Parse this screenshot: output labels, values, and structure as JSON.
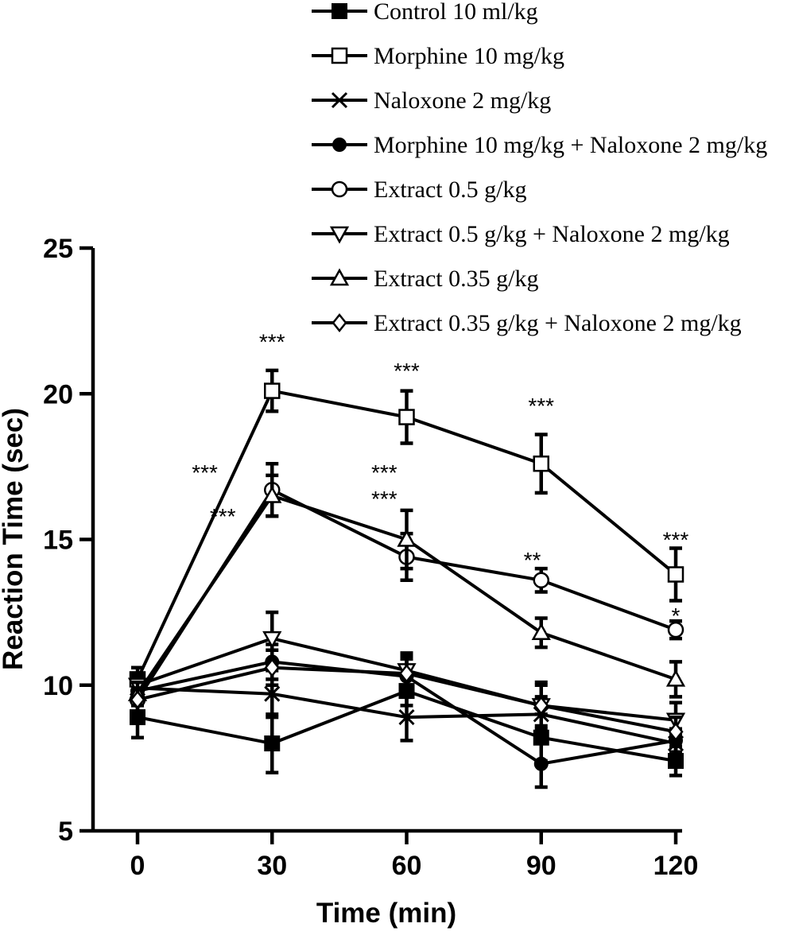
{
  "chart_data": {
    "type": "line",
    "title": "",
    "xlabel": "Time (min)",
    "ylabel": "Reaction Time (sec)",
    "x": [
      0,
      30,
      60,
      90,
      120
    ],
    "xticks": [
      "0",
      "30",
      "60",
      "90",
      "120"
    ],
    "yticks": [
      "5",
      "10",
      "15",
      "20",
      "25"
    ],
    "xlim": [
      0,
      120
    ],
    "ylim": [
      5,
      25
    ],
    "grid": false,
    "legend_position": "top-right",
    "series": [
      {
        "name": "Control 10 ml/kg",
        "marker": "filled-square",
        "values": [
          8.9,
          8.0,
          9.8,
          8.2,
          7.4
        ],
        "errors": [
          0.7,
          1.0,
          0.5,
          0.8,
          0.5
        ]
      },
      {
        "name": "Morphine 10 mg/kg",
        "marker": "open-square",
        "values": [
          10.2,
          20.1,
          19.2,
          17.6,
          13.8
        ],
        "errors": [
          0.4,
          0.7,
          0.9,
          1.0,
          0.9
        ]
      },
      {
        "name": "Naloxone 2 mg/kg",
        "marker": "cross",
        "values": [
          9.9,
          9.7,
          8.9,
          9.0,
          8.0
        ],
        "errors": [
          0.4,
          0.8,
          0.8,
          0.6,
          0.3
        ]
      },
      {
        "name": "Morphine 10 mg/kg + Naloxone 2 mg/kg",
        "marker": "filled-circle",
        "values": [
          9.8,
          10.8,
          10.3,
          7.3,
          8.1
        ],
        "errors": [
          0.4,
          0.6,
          0.6,
          0.8,
          0.4
        ]
      },
      {
        "name": "Extract 0.5 g/kg",
        "marker": "open-circle",
        "values": [
          9.5,
          16.7,
          14.4,
          13.6,
          11.9
        ],
        "errors": [
          0.4,
          0.9,
          0.8,
          0.4,
          0.3
        ]
      },
      {
        "name": "Extract 0.5 g/kg + Naloxone 2 mg/kg",
        "marker": "open-triangle-down",
        "values": [
          10.0,
          11.6,
          10.5,
          9.3,
          8.8
        ],
        "errors": [
          0.4,
          0.9,
          0.6,
          0.7,
          0.6
        ]
      },
      {
        "name": "Extract 0.35 g/kg",
        "marker": "open-triangle-up",
        "values": [
          9.7,
          16.5,
          15.0,
          11.8,
          10.2
        ],
        "errors": [
          0.4,
          0.7,
          1.0,
          0.5,
          0.6
        ]
      },
      {
        "name": "Extract 0.35 g/kg + Naloxone 2 mg/kg",
        "marker": "open-diamond",
        "values": [
          9.5,
          10.6,
          10.4,
          9.3,
          8.4
        ],
        "errors": [
          0.4,
          0.6,
          0.6,
          0.8,
          0.5
        ]
      }
    ],
    "annotations": [
      {
        "text": "***",
        "x": 30,
        "y": 21.8
      },
      {
        "text": "***",
        "x": 60,
        "y": 20.8
      },
      {
        "text": "***",
        "x": 90,
        "y": 19.6
      },
      {
        "text": "***",
        "x": 120,
        "y": 15.0
      },
      {
        "text": "***",
        "x": 15,
        "y": 17.3
      },
      {
        "text": "***",
        "x": 19,
        "y": 15.8
      },
      {
        "text": "***",
        "x": 55,
        "y": 17.3
      },
      {
        "text": "***",
        "x": 55,
        "y": 16.4
      },
      {
        "text": "**",
        "x": 88,
        "y": 14.3
      },
      {
        "text": "*",
        "x": 120,
        "y": 12.4
      }
    ]
  }
}
